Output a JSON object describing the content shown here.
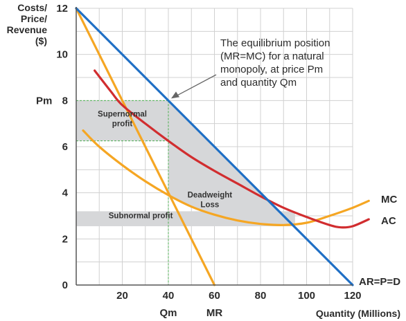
{
  "chart_data": {
    "type": "line",
    "ylabel_lines": [
      "Costs/",
      "Price/",
      "Revenue",
      "($)"
    ],
    "xlabel": "Quantity (Millions)",
    "xlim": [
      0,
      120
    ],
    "ylim": [
      0,
      12
    ],
    "grid": true,
    "x_ticks": [
      20,
      40,
      60,
      80,
      100,
      120
    ],
    "y_ticks": [
      0,
      2,
      4,
      6,
      8,
      10,
      12
    ],
    "x_special_ticks": [
      {
        "x": 40,
        "label": "Qm"
      },
      {
        "x": 60,
        "label": "MR"
      }
    ],
    "y_special_ticks": [
      {
        "y": 8,
        "label": "Pm"
      }
    ],
    "series": [
      {
        "name": "AR=P=D",
        "color": "#1f6fc5",
        "points": [
          [
            0,
            12
          ],
          [
            120,
            0
          ]
        ]
      },
      {
        "name": "MR",
        "color": "#f5a623",
        "points": [
          [
            0,
            12
          ],
          [
            60,
            0
          ]
        ]
      },
      {
        "name": "MC",
        "color": "#f5a623",
        "points": [
          [
            3,
            6.7
          ],
          [
            10,
            6.0
          ],
          [
            20,
            5.2
          ],
          [
            30,
            4.5
          ],
          [
            40,
            3.9
          ],
          [
            50,
            3.4
          ],
          [
            60,
            3.05
          ],
          [
            70,
            2.8
          ],
          [
            80,
            2.65
          ],
          [
            90,
            2.6
          ],
          [
            100,
            2.7
          ],
          [
            110,
            3.0
          ],
          [
            120,
            3.35
          ],
          [
            127,
            3.65
          ]
        ]
      },
      {
        "name": "AC",
        "color": "#d12d2f",
        "points": [
          [
            8,
            9.3
          ],
          [
            15,
            8.4
          ],
          [
            20,
            7.8
          ],
          [
            30,
            7.0
          ],
          [
            40,
            6.25
          ],
          [
            50,
            5.55
          ],
          [
            60,
            4.95
          ],
          [
            70,
            4.4
          ],
          [
            80,
            3.85
          ],
          [
            90,
            3.35
          ],
          [
            100,
            2.95
          ],
          [
            110,
            2.6
          ],
          [
            115,
            2.5
          ],
          [
            120,
            2.55
          ],
          [
            127,
            2.85
          ]
        ]
      }
    ],
    "regions": [
      {
        "label_lines": [
          "Supernormal",
          "profit"
        ],
        "fill": "#d6d7d9",
        "polygon": [
          [
            0,
            8
          ],
          [
            40,
            8
          ],
          [
            40,
            6.25
          ],
          [
            0,
            6.25
          ]
        ]
      },
      {
        "label_lines": [
          "Deadweight",
          "Loss"
        ],
        "fill": "#d6d7d9",
        "polygon": [
          [
            40,
            8
          ],
          [
            95,
            2.5
          ],
          [
            95,
            2.55
          ],
          [
            80,
            2.65
          ],
          [
            70,
            2.8
          ],
          [
            60,
            3.05
          ],
          [
            50,
            3.4
          ],
          [
            40,
            3.9
          ]
        ]
      },
      {
        "label_lines": [
          "Subnormal profit"
        ],
        "fill": "#d6d7d9",
        "polygon": [
          [
            0,
            3.2
          ],
          [
            95,
            3.2
          ],
          [
            95,
            2.55
          ],
          [
            0,
            2.55
          ]
        ]
      }
    ],
    "annotations": [
      {
        "text_lines": [
          "The equilibrium position",
          "(MR=MC) for a natural",
          "monopoly, at price Pm",
          "and quantity Qm"
        ],
        "arrow_to": [
          40,
          8
        ]
      }
    ]
  }
}
